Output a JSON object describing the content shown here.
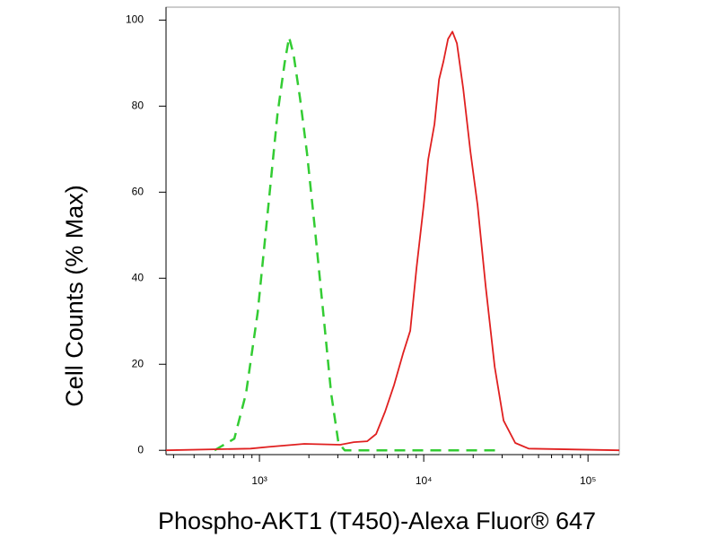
{
  "chart_data": {
    "type": "line",
    "xlabel": "Phospho-AKT1 (T450)-Alexa Fluor® 647",
    "ylabel": "Cell Counts (% Max)",
    "xscale": "log",
    "xlim": [
      270,
      155000
    ],
    "ylim": [
      -1,
      103
    ],
    "xticks": [
      {
        "value": 1000,
        "label": "10³"
      },
      {
        "value": 10000,
        "label": "10⁴"
      },
      {
        "value": 100000,
        "label": "10⁵"
      }
    ],
    "xminor_ticks": [
      300,
      400,
      500,
      600,
      700,
      800,
      900,
      2000,
      3000,
      4000,
      5000,
      6000,
      7000,
      8000,
      9000,
      20000,
      30000,
      40000,
      50000,
      60000,
      70000,
      80000,
      90000
    ],
    "yticks": [
      0,
      20,
      40,
      60,
      80,
      100
    ],
    "series": [
      {
        "color": "#33cc33",
        "dashed": true,
        "x": [
          533,
          703,
          828,
          975,
          1134,
          1286,
          1422,
          1515,
          1614,
          1763,
          1948,
          2183,
          2473,
          2734,
          3027,
          3304,
          29870
        ],
        "values": [
          0,
          2.7,
          13.2,
          32,
          57,
          78,
          90,
          96,
          92,
          82,
          69,
          51,
          30,
          13.2,
          1.7,
          0,
          0
        ]
      },
      {
        "color": "#e02020",
        "dashed": false,
        "x": [
          270,
          882,
          1134,
          1875,
          3105,
          3750,
          4529,
          5130,
          5821,
          6601,
          7487,
          8280,
          9040,
          10000,
          10650,
          11630,
          12390,
          13190,
          14050,
          14960,
          15930,
          17390,
          19220,
          21270,
          23820,
          27030,
          30640,
          36070,
          43550,
          155000
        ],
        "values": [
          0,
          0.4,
          0.8,
          1.5,
          1.3,
          1.9,
          2.1,
          3.8,
          9.0,
          15.2,
          22.5,
          27.8,
          42.4,
          57,
          67.6,
          75.8,
          86.2,
          90.4,
          95.6,
          97.3,
          94.6,
          84.1,
          69.5,
          57,
          38.2,
          19.4,
          6.9,
          1.7,
          0.4,
          0
        ]
      }
    ]
  }
}
